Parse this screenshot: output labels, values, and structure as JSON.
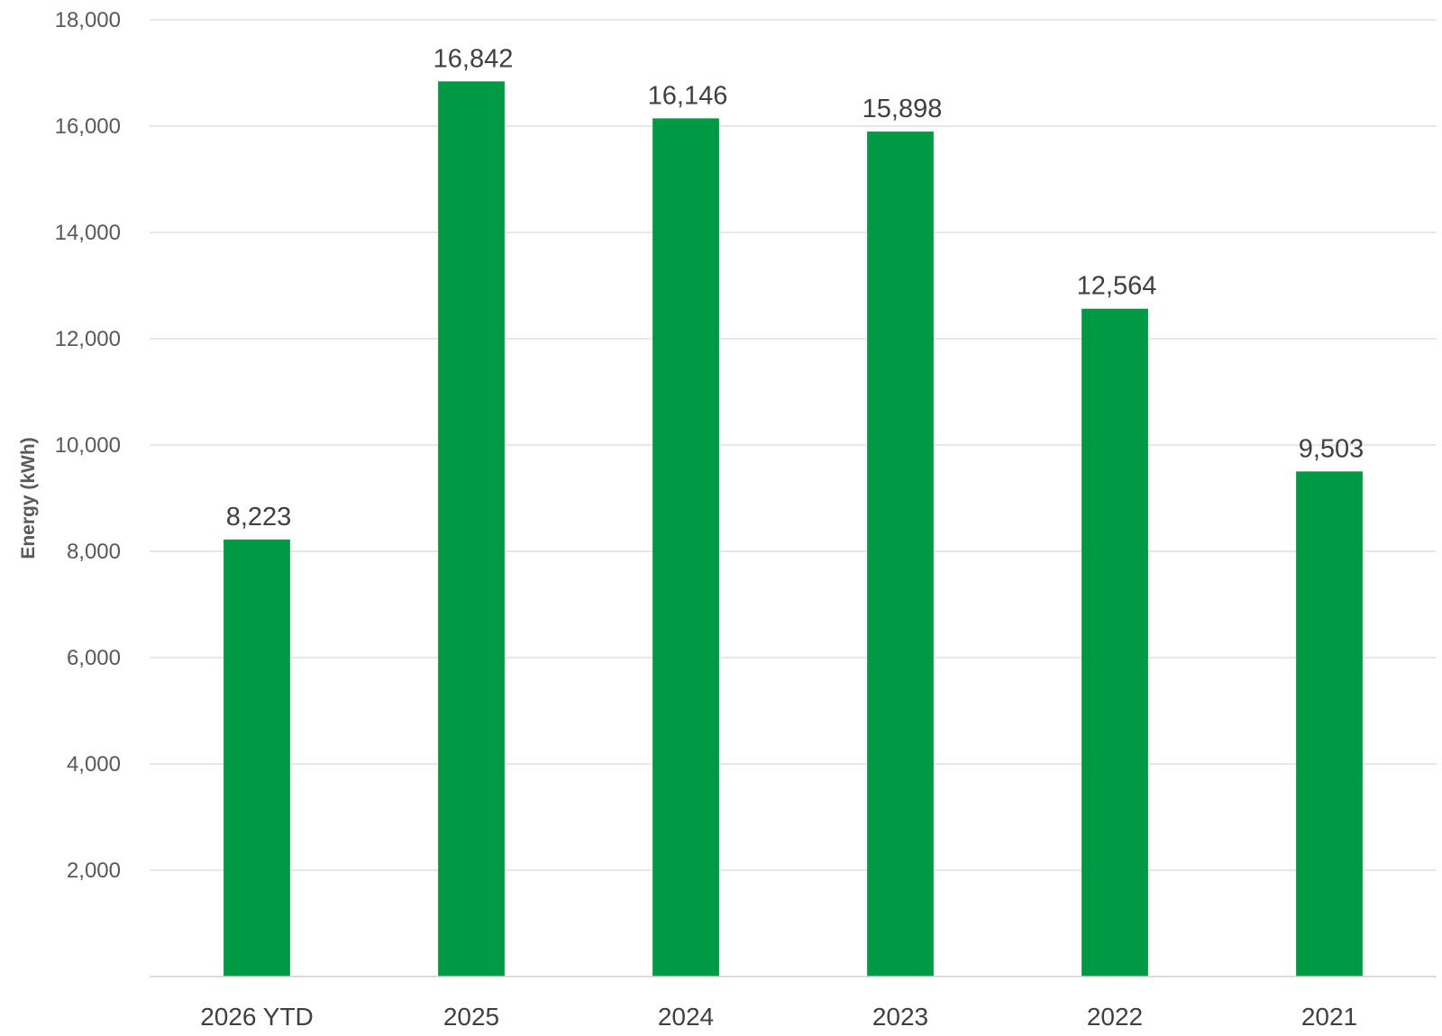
{
  "chart_data": {
    "type": "bar",
    "title": "",
    "xlabel": "",
    "ylabel": "Energy (kWh)",
    "categories": [
      "2026 YTD",
      "2025",
      "2024",
      "2023",
      "2022",
      "2021"
    ],
    "values": [
      8223,
      16842,
      16146,
      15898,
      12564,
      9503
    ],
    "value_labels": [
      "8,223",
      "16,842",
      "16,146",
      "15,898",
      "12,564",
      "9,503"
    ],
    "ylim": [
      0,
      18000
    ],
    "y_ticks": [
      2000,
      4000,
      6000,
      8000,
      10000,
      12000,
      14000,
      16000,
      18000
    ],
    "y_tick_labels": [
      "2,000",
      "4,000",
      "6,000",
      "8,000",
      "10,000",
      "12,000",
      "14,000",
      "16,000",
      "18,000"
    ],
    "grid": true,
    "legend": "none",
    "bar_color": "#009a44"
  }
}
